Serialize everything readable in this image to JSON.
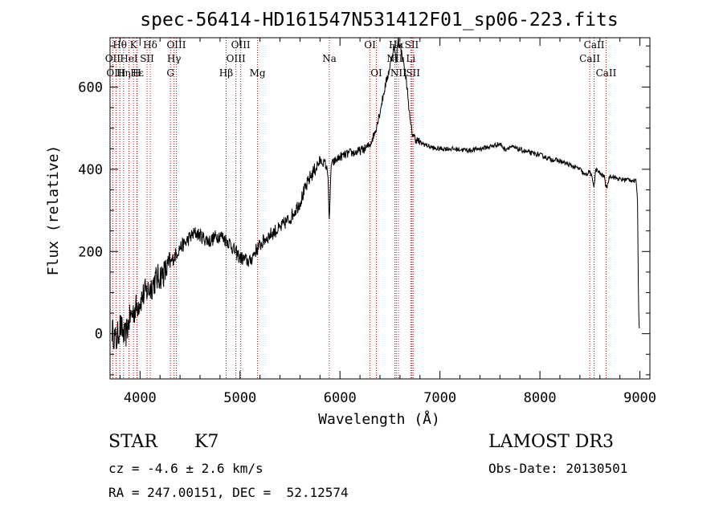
{
  "chart_data": {
    "type": "line",
    "title": "spec-56414-HD161547N531412F01_sp06-223.fits",
    "xlabel": "Wavelength (Å)",
    "ylabel": "Flux (relative)",
    "xlim": [
      3700,
      9100
    ],
    "ylim": [
      -110,
      720
    ],
    "xticks": [
      4000,
      5000,
      6000,
      7000,
      8000,
      9000
    ],
    "yticks": [
      0,
      200,
      400,
      600
    ],
    "grid": false,
    "line_color": "#000000",
    "marker_color": "#cc0000",
    "series": [
      {
        "x": [
          3720,
          3760,
          3800,
          3850,
          3900,
          3950,
          4000,
          4050,
          4100,
          4150,
          4200,
          4250,
          4300,
          4350,
          4400,
          4450,
          4500,
          4550,
          4600,
          4650,
          4700,
          4750,
          4800,
          4850,
          4900,
          4950,
          5000,
          5050,
          5100,
          5150,
          5200,
          5250,
          5300,
          5350,
          5400,
          5450,
          5500,
          5550,
          5600,
          5650,
          5700,
          5750,
          5800,
          5850,
          5880,
          5893,
          5910,
          5950,
          6000,
          6050,
          6100,
          6150,
          6200,
          6250,
          6300,
          6350,
          6400,
          6450,
          6500,
          6540,
          6563,
          6580,
          6600,
          6620,
          6650,
          6680,
          6700,
          6720,
          6750,
          6800,
          6850,
          6900,
          6950,
          7000,
          7100,
          7200,
          7300,
          7400,
          7500,
          7600,
          7650,
          7700,
          7800,
          7900,
          8000,
          8100,
          8200,
          8300,
          8400,
          8450,
          8500,
          8542,
          8560,
          8600,
          8650,
          8662,
          8700,
          8800,
          8900,
          8960,
          8975,
          8985,
          8990,
          8998
        ],
        "y": [
          10,
          -20,
          20,
          -10,
          40,
          60,
          80,
          100,
          110,
          130,
          140,
          150,
          170,
          190,
          210,
          220,
          235,
          245,
          240,
          230,
          225,
          235,
          240,
          230,
          220,
          200,
          185,
          180,
          175,
          200,
          215,
          230,
          240,
          250,
          255,
          270,
          280,
          300,
          320,
          350,
          380,
          400,
          420,
          415,
          390,
          260,
          410,
          420,
          430,
          435,
          440,
          440,
          445,
          450,
          460,
          490,
          540,
          600,
          650,
          700,
          660,
          720,
          700,
          680,
          640,
          580,
          520,
          490,
          475,
          465,
          460,
          455,
          450,
          450,
          450,
          448,
          446,
          450,
          455,
          462,
          448,
          455,
          448,
          440,
          435,
          425,
          420,
          410,
          400,
          385,
          395,
          360,
          400,
          390,
          380,
          350,
          385,
          375,
          375,
          370,
          340,
          100,
          30,
          0
        ]
      }
    ],
    "lines": [
      {
        "name": "Hθ",
        "wave": 3798,
        "row": 0
      },
      {
        "name": "OII",
        "wave": 3727,
        "row": 1
      },
      {
        "name": "OIII",
        "wave": 3760,
        "row": 2
      },
      {
        "name": "K",
        "wave": 3934,
        "row": 0
      },
      {
        "name": "H",
        "wave": 3968,
        "row": 2
      },
      {
        "name": "Hε",
        "wave": 3970,
        "row": 2
      },
      {
        "name": "Hη",
        "wave": 3835,
        "row": 2
      },
      {
        "name": "HeI",
        "wave": 3889,
        "row": 1
      },
      {
        "name": "SII",
        "wave": 4070,
        "row": 1
      },
      {
        "name": "Hδ",
        "wave": 4102,
        "row": 0
      },
      {
        "name": "OIII",
        "wave": 4363,
        "row": 0
      },
      {
        "name": "Hγ",
        "wave": 4340,
        "row": 1
      },
      {
        "name": "G",
        "wave": 4304,
        "row": 2
      },
      {
        "name": "Hβ",
        "wave": 4861,
        "row": 2
      },
      {
        "name": "OIII",
        "wave": 5007,
        "row": 0
      },
      {
        "name": "OIII",
        "wave": 4959,
        "row": 1
      },
      {
        "name": "Mg",
        "wave": 5175,
        "row": 2
      },
      {
        "name": "Na",
        "wave": 5893,
        "row": 1
      },
      {
        "name": "OI",
        "wave": 6300,
        "row": 0
      },
      {
        "name": "OI",
        "wave": 6364,
        "row": 2
      },
      {
        "name": "Hα",
        "wave": 6563,
        "row": 0
      },
      {
        "name": "NII",
        "wave": 6548,
        "row": 1
      },
      {
        "name": "NII",
        "wave": 6584,
        "row": 2
      },
      {
        "name": "SII",
        "wave": 6717,
        "row": 0
      },
      {
        "name": "Li",
        "wave": 6708,
        "row": 1
      },
      {
        "name": "SII",
        "wave": 6731,
        "row": 2
      },
      {
        "name": "CaII",
        "wave": 8542,
        "row": 0
      },
      {
        "name": "CaII",
        "wave": 8498,
        "row": 1
      },
      {
        "name": "CaII",
        "wave": 8662,
        "row": 2
      }
    ]
  },
  "info": {
    "class_label": "STAR",
    "subclass": "K7",
    "survey": "LAMOST DR3",
    "cz": "cz = -4.6 ± 2.6 km/s",
    "obs_date": "Obs-Date: 20130501",
    "coords": "RA = 247.00151, DEC =  52.12574"
  }
}
